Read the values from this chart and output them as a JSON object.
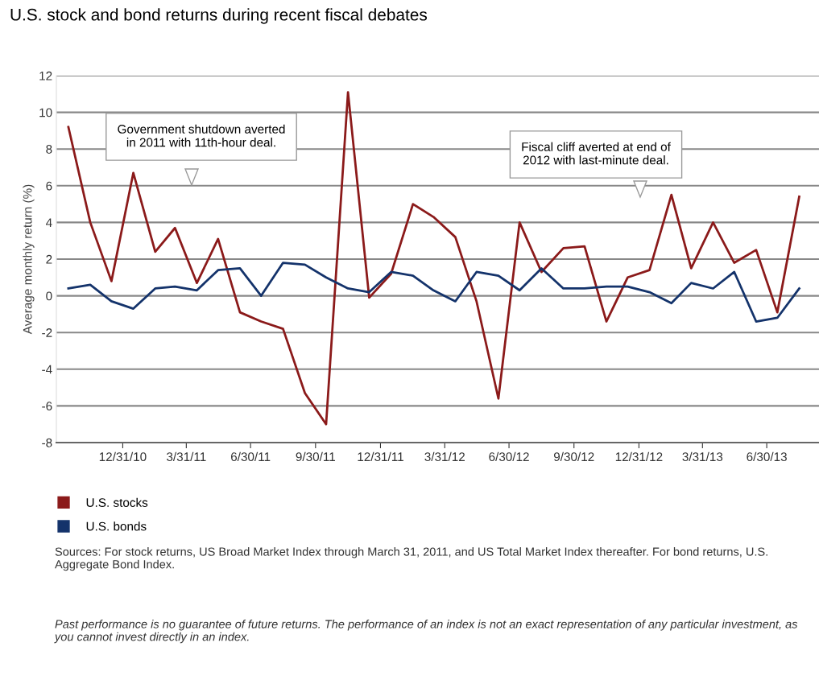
{
  "chart_data": {
    "type": "line",
    "title": "U.S. stock and bond returns during recent fiscal debates",
    "ylabel": "Average monthly return (%)",
    "x": [
      "2010-10-15",
      "2010-11-15",
      "2010-12-15",
      "2011-01-15",
      "2011-02-15",
      "2011-03-15",
      "2011-04-15",
      "2011-05-15",
      "2011-06-15",
      "2011-07-15",
      "2011-08-15",
      "2011-09-15",
      "2011-10-15",
      "2011-11-15",
      "2011-12-15",
      "2012-01-15",
      "2012-02-15",
      "2012-03-15",
      "2012-04-15",
      "2012-05-15",
      "2012-06-15",
      "2012-07-15",
      "2012-08-15",
      "2012-09-15",
      "2012-10-15",
      "2012-11-15",
      "2012-12-15",
      "2013-01-15",
      "2013-02-15",
      "2013-03-15",
      "2013-04-15",
      "2013-05-15",
      "2013-06-15",
      "2013-07-15",
      "2013-08-15"
    ],
    "series": [
      {
        "name": "U.S. stocks",
        "color": "#8b1a1a",
        "values": [
          9.2,
          4.0,
          0.8,
          6.7,
          2.4,
          3.7,
          0.7,
          3.1,
          -0.9,
          -1.4,
          -1.8,
          -5.3,
          -7.0,
          11.1,
          -0.1,
          1.2,
          5.0,
          4.3,
          3.2,
          -0.3,
          -5.6,
          4.0,
          1.3,
          2.6,
          2.7,
          -1.4,
          1.0,
          1.4,
          5.5,
          1.5,
          4.0,
          1.8,
          2.5,
          -0.9,
          5.4
        ]
      },
      {
        "name": "U.S. bonds",
        "color": "#14336b",
        "values": [
          0.4,
          0.6,
          -0.3,
          -0.7,
          0.4,
          0.5,
          0.3,
          1.4,
          1.5,
          0.0,
          1.8,
          1.7,
          1.0,
          0.4,
          0.2,
          1.3,
          1.1,
          0.3,
          -0.3,
          1.3,
          1.1,
          0.3,
          1.5,
          0.4,
          0.4,
          0.5,
          0.5,
          0.2,
          -0.4,
          0.7,
          0.4,
          1.3,
          -1.4,
          -1.2,
          0.4
        ]
      }
    ],
    "xlim": [
      "2010-09-28",
      "2013-09-12"
    ],
    "xticks": [
      {
        "value": "2010-12-31",
        "label": "12/31/10"
      },
      {
        "value": "2011-03-31",
        "label": "3/31/11"
      },
      {
        "value": "2011-06-30",
        "label": "6/30/11"
      },
      {
        "value": "2011-09-30",
        "label": "9/30/11"
      },
      {
        "value": "2011-12-31",
        "label": "12/31/11"
      },
      {
        "value": "2012-03-31",
        "label": "3/31/12"
      },
      {
        "value": "2012-06-30",
        "label": "6/30/12"
      },
      {
        "value": "2012-09-30",
        "label": "9/30/12"
      },
      {
        "value": "2012-12-31",
        "label": "12/31/12"
      },
      {
        "value": "2013-03-31",
        "label": "3/31/13"
      },
      {
        "value": "2013-06-30",
        "label": "6/30/13"
      }
    ],
    "ylim": [
      -8,
      12
    ],
    "yticks": [
      -8,
      -6,
      -4,
      -2,
      0,
      2,
      4,
      6,
      8,
      10,
      12
    ],
    "grid": "y",
    "legend": "bottom",
    "marker": "none",
    "line_style": "solid",
    "annotations": [
      "Government shutdown averted\nin 2011 with 11th-hour deal.",
      "Fiscal cliff averted at end of\n2012 with last-minute deal.",
      "Sources: For stock returns, US Broad Market Index through March 31, 2011, and US Total Market Index thereafter. For bond returns, U.S. Aggregate Bond Index.",
      "Past performance is no guarantee of future returns. The performance of an index is not an exact representation of any particular investment, as you cannot invest directly in an index."
    ]
  }
}
